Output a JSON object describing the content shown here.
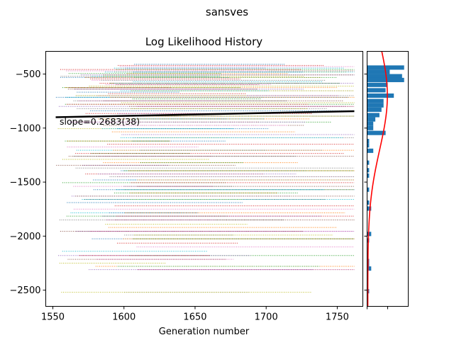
{
  "figure": {
    "suptitle": "sansves"
  },
  "chart_data": [
    {
      "type": "line",
      "title": "Log Likelihood History",
      "xlabel": "Generation number",
      "ylabel": "",
      "xlim": [
        1545,
        1768
      ],
      "ylim": [
        -2650,
        -290
      ],
      "x_ticks": [
        1550,
        1600,
        1650,
        1700,
        1750
      ],
      "x_tick_labels": [
        "1550",
        "1600",
        "1650",
        "1700",
        "1750"
      ],
      "y_ticks": [
        -500,
        -1000,
        -1500,
        -2000,
        -2500
      ],
      "y_tick_labels": [
        "−500",
        "−1000",
        "−1500",
        "−2000",
        "−2500"
      ],
      "fit_line": {
        "x": [
          1552,
          1762
        ],
        "y": [
          -900,
          -844
        ]
      },
      "annotation": "slope=0.2683(38)",
      "series_note": "many individual dotted traces at near-constant log likelihood across generations 1552-1762",
      "trace_levels": [
        -410,
        -420,
        -432,
        -445,
        -458,
        -470,
        -482,
        -495,
        -508,
        -520,
        -532,
        -545,
        -558,
        -570,
        -585,
        -598,
        -612,
        -625,
        -640,
        -655,
        -668,
        -682,
        -700,
        -715,
        -730,
        -748,
        -765,
        -780,
        -800,
        -820,
        -840,
        -865,
        -890,
        -915,
        -945,
        -975,
        -1005,
        -1035,
        -1060,
        -1090,
        -1120,
        -1150,
        -1175,
        -1205,
        -1235,
        -1260,
        -1290,
        -1320,
        -1345,
        -1370,
        -1395,
        -1425,
        -1450,
        -1480,
        -1505,
        -1540,
        -1570,
        -1600,
        -1630,
        -1660,
        -1690,
        -1720,
        -1750,
        -1785,
        -1815,
        -1850,
        -1890,
        -1920,
        -1955,
        -1990,
        -2025,
        -2065,
        -2100,
        -2140,
        -2180,
        -2215,
        -2250,
        -2280,
        -2310,
        -2520
      ],
      "trace_colors": [
        "#1f77b4",
        "#ff7f0e",
        "#2ca02c",
        "#d62728",
        "#9467bd",
        "#8c564b",
        "#e377c2",
        "#7f7f7f",
        "#bcbd22",
        "#17becf"
      ]
    },
    {
      "type": "histogram",
      "orientation": "horizontal",
      "bar_color": "#1f77b4",
      "curve_color": "#ff0000",
      "bins": [
        {
          "y": -440,
          "count": 18
        },
        {
          "y": -480,
          "count": 11
        },
        {
          "y": -520,
          "count": 17
        },
        {
          "y": -555,
          "count": 18
        },
        {
          "y": -600,
          "count": 10
        },
        {
          "y": -650,
          "count": 9
        },
        {
          "y": -700,
          "count": 13
        },
        {
          "y": -750,
          "count": 8
        },
        {
          "y": -790,
          "count": 8
        },
        {
          "y": -830,
          "count": 7
        },
        {
          "y": -880,
          "count": 6
        },
        {
          "y": -920,
          "count": 4
        },
        {
          "y": -960,
          "count": 3
        },
        {
          "y": -1000,
          "count": 3
        },
        {
          "y": -1045,
          "count": 9
        },
        {
          "y": -1120,
          "count": 1
        },
        {
          "y": -1160,
          "count": 1
        },
        {
          "y": -1210,
          "count": 3
        },
        {
          "y": -1320,
          "count": 1
        },
        {
          "y": -1390,
          "count": 1
        },
        {
          "y": -1440,
          "count": 1
        },
        {
          "y": -1570,
          "count": 1
        },
        {
          "y": -1690,
          "count": 1
        },
        {
          "y": -1745,
          "count": 2
        },
        {
          "y": -1980,
          "count": 2
        },
        {
          "y": -2040,
          "count": 1
        },
        {
          "y": -2230,
          "count": 1
        },
        {
          "y": -2270,
          "count": 1
        },
        {
          "y": -2300,
          "count": 2
        },
        {
          "y": -2510,
          "count": 1
        }
      ],
      "xlim": [
        0,
        20
      ],
      "curve": {
        "mean": -700,
        "sd": 500,
        "peak": 9.5
      }
    }
  ]
}
